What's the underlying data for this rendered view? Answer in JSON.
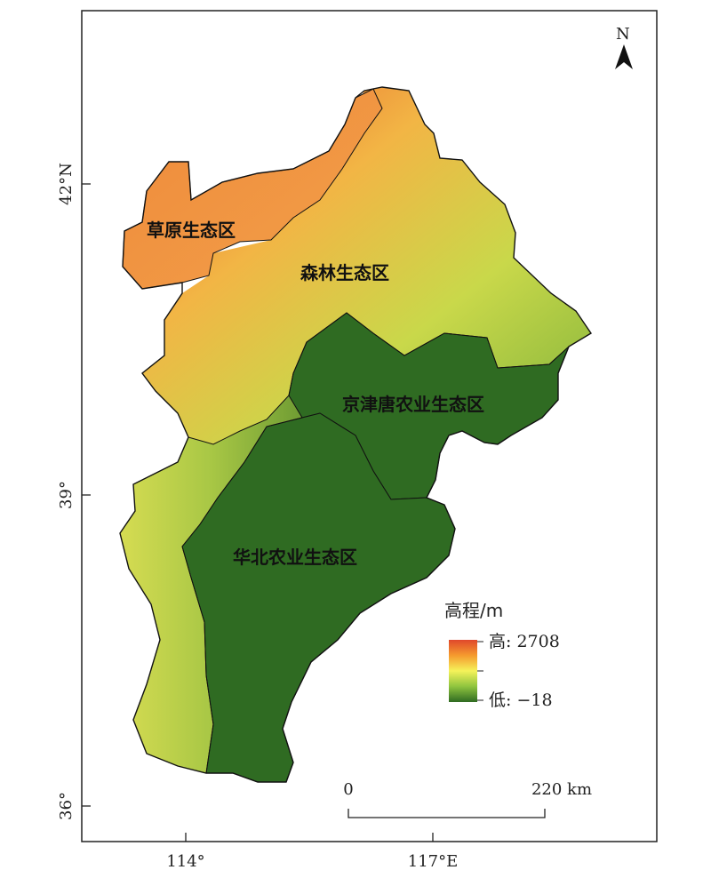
{
  "north_arrow": {
    "label": "N"
  },
  "regions": {
    "grassland": "草原生态区",
    "forest": "森林生态区",
    "jingjintang": "京津唐农业生态区",
    "huabei": "华北农业生态区"
  },
  "axes": {
    "y_ticks": [
      "42°N",
      "39°",
      "36°"
    ],
    "x_ticks": [
      "114°",
      "117°E"
    ]
  },
  "legend": {
    "title": "高程/m",
    "high_label": "高: 2708",
    "low_label": "低: −18",
    "high_value": 2708,
    "low_value": -18,
    "colors": [
      "#e0482b",
      "#f59a2e",
      "#f5f25a",
      "#8fc43f",
      "#2f6b22"
    ]
  },
  "scale_bar": {
    "start": "0",
    "end": "220 km"
  }
}
